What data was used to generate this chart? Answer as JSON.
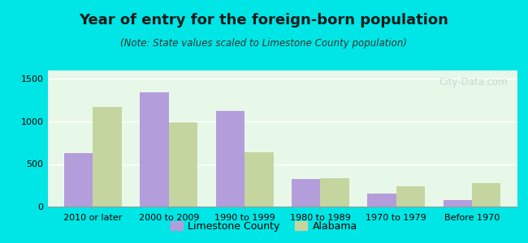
{
  "title": "Year of entry for the foreign-born population",
  "subtitle": "(Note: State values scaled to Limestone County population)",
  "categories": [
    "2010 or later",
    "2000 to 2009",
    "1990 to 1999",
    "1980 to 1989",
    "1970 to 1979",
    "Before 1970"
  ],
  "limestone_values": [
    625,
    1340,
    1120,
    320,
    155,
    75
  ],
  "alabama_values": [
    1175,
    990,
    640,
    335,
    235,
    280
  ],
  "limestone_color": "#b39ddb",
  "alabama_color": "#c5d5a0",
  "bar_width": 0.38,
  "ylim": [
    0,
    1600
  ],
  "yticks": [
    0,
    500,
    1000,
    1500
  ],
  "background_color": "#00e5e5",
  "plot_bg_gradient_top": "#e8f8e8",
  "plot_bg_gradient_bottom": "#f5fff5",
  "title_fontsize": 13,
  "subtitle_fontsize": 8.5,
  "tick_fontsize": 8,
  "legend_fontsize": 9,
  "watermark": "City-Data.com"
}
